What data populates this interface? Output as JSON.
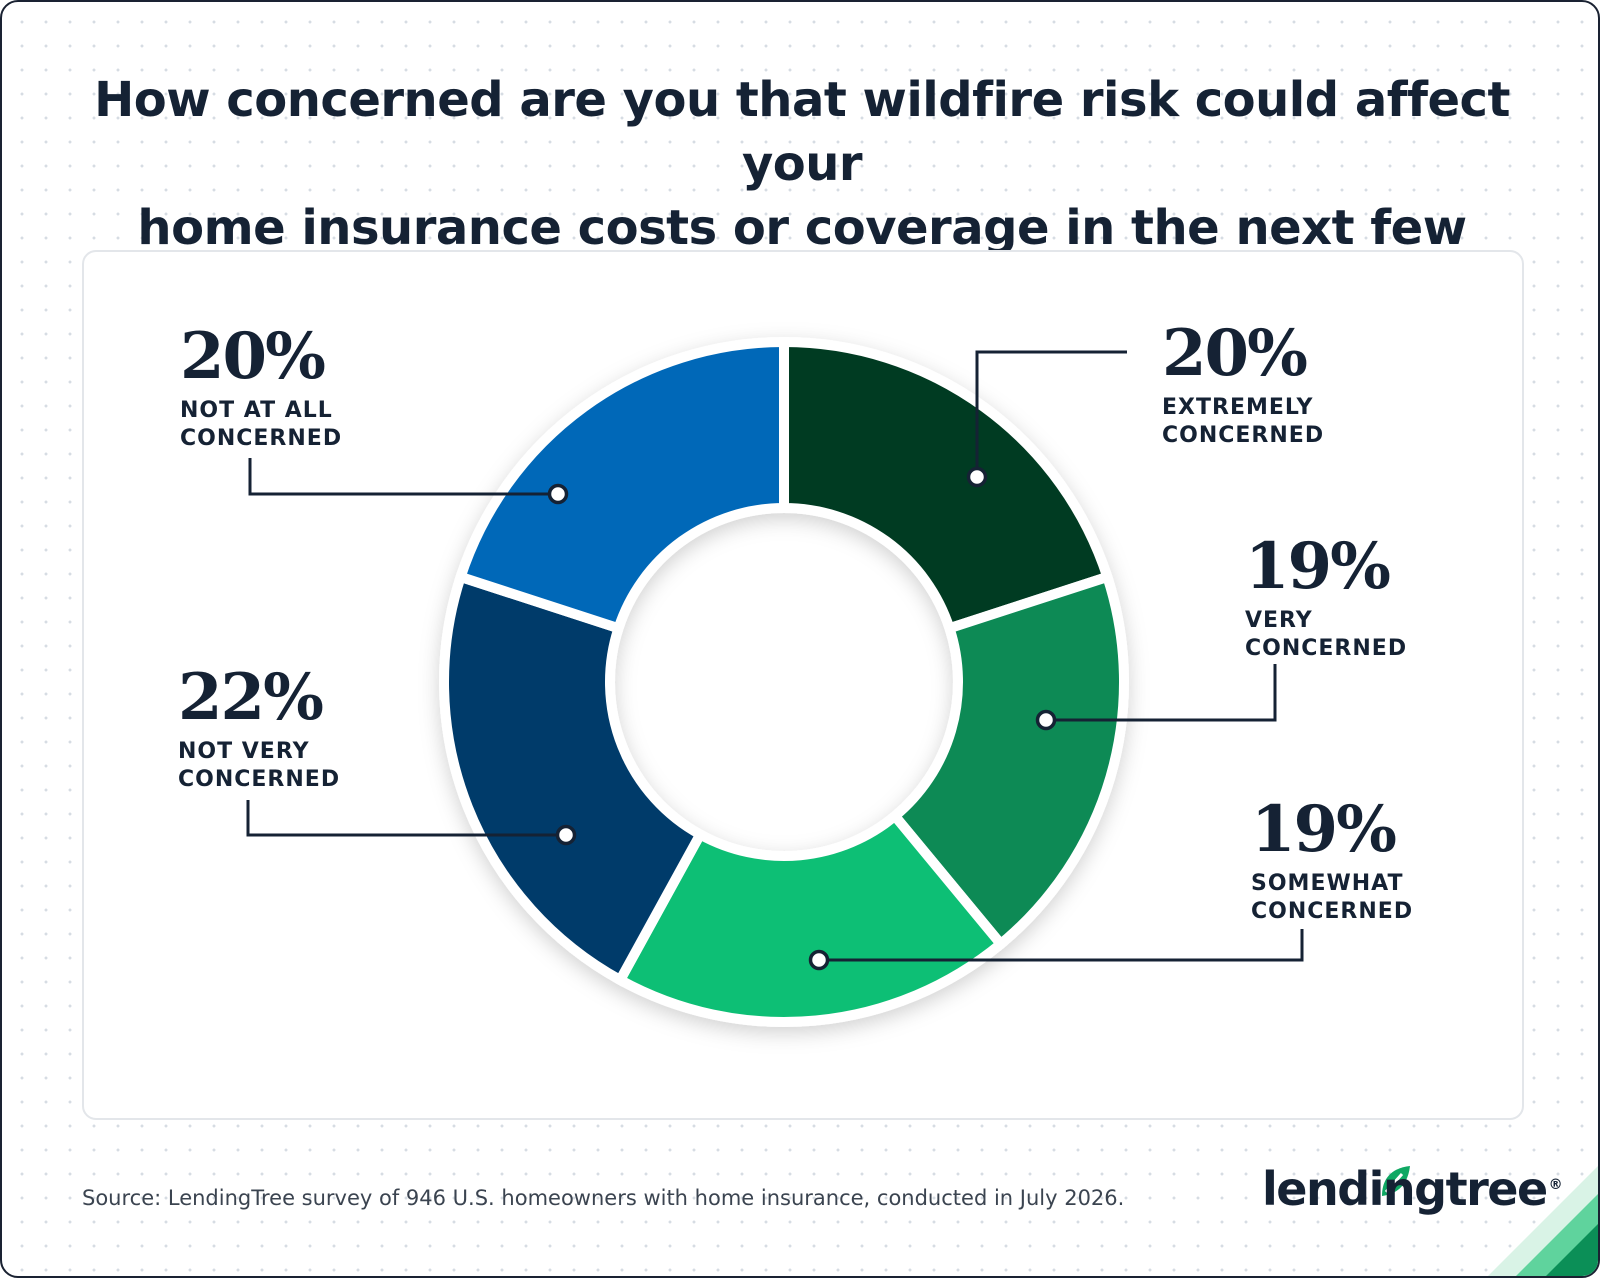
{
  "title_lines": [
    "How concerned are you that wildfire risk could affect your",
    "home insurance costs or coverage in the next few years?"
  ],
  "chart_data": {
    "type": "pie",
    "variant": "donut",
    "slices": [
      {
        "pct": "20%",
        "value": 20,
        "line1": "EXTREMELY",
        "line2": "CONCERNED",
        "color": "#003a22"
      },
      {
        "pct": "19%",
        "value": 19,
        "line1": "VERY",
        "line2": "CONCERNED",
        "color": "#078a55"
      },
      {
        "pct": "19%",
        "value": 19,
        "line1": "SOMEWHAT",
        "line2": "CONCERNED",
        "color": "#0fbf75"
      },
      {
        "pct": "22%",
        "value": 22,
        "line1": "NOT VERY",
        "line2": "CONCERNED",
        "color": "#003b6b"
      },
      {
        "pct": "20%",
        "value": 20,
        "line1": "NOT AT ALL",
        "line2": "CONCERNED",
        "color": "#0268b8"
      }
    ]
  },
  "source": "Source: LendingTree survey of 946 U.S. homeowners with home insurance, conducted in July 2026.",
  "logo": {
    "text": "lendingtree",
    "mark": "®",
    "icon": "leaf-icon"
  }
}
